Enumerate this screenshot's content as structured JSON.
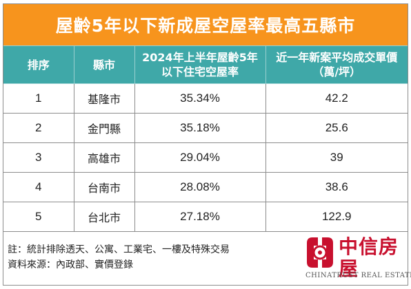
{
  "title": "屋齡5年以下新成屋空屋率最高五縣市",
  "table": {
    "headers": [
      "排序",
      "縣市",
      "2024年上半年屋齡5年以下住宅空屋率",
      "近一年新案平均成交單價（萬/坪）"
    ],
    "rows": [
      {
        "rank": "1",
        "city": "基隆市",
        "vacancy": "35.34%",
        "price": "42.2"
      },
      {
        "rank": "2",
        "city": "金門縣",
        "vacancy": "35.18%",
        "price": "25.6"
      },
      {
        "rank": "3",
        "city": "高雄市",
        "vacancy": "29.04%",
        "price": "39"
      },
      {
        "rank": "4",
        "city": "台南市",
        "vacancy": "28.08%",
        "price": "38.6"
      },
      {
        "rank": "5",
        "city": "台北市",
        "vacancy": "27.18%",
        "price": "122.9"
      }
    ]
  },
  "notes": {
    "note": "註：統計排除透天、公寓、工業宅、一樓及特殊交易",
    "source": "資料來源：內政部、實價登錄"
  },
  "logo": {
    "name": "中信房屋",
    "english": "CHINATRUST REAL ESTATE CO."
  },
  "colors": {
    "title_bg": "#f7941d",
    "header_bg": "#3fa8a8",
    "logo_red": "#c8102e"
  }
}
